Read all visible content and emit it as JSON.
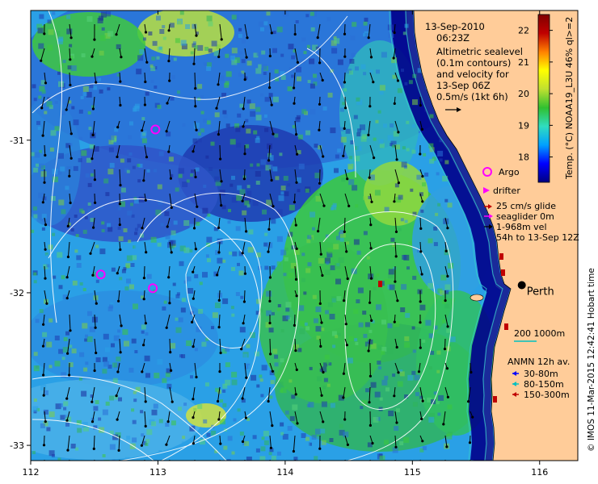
{
  "header": {
    "date": "13-Sep-2010",
    "time": "06:23Z",
    "description_lines": [
      "Altimetric sealevel",
      "(0.1m contours)",
      "and velocity for",
      "13-Sep 06Z",
      "0.5m/s (1kt 6h)"
    ]
  },
  "colorbar": {
    "label": "Temp. (°C) NOAA19_L3U 46% ql>=2",
    "ticks": [
      "18",
      "19",
      "20",
      "21",
      "22"
    ],
    "tick_values": [
      18,
      19,
      20,
      21,
      22
    ],
    "range": [
      17.2,
      22.5
    ],
    "colors": [
      "#000080",
      "#0000ff",
      "#00a0ff",
      "#30ddc0",
      "#30c030",
      "#c0e030",
      "#ffff00",
      "#ff8000",
      "#c00000",
      "#800000"
    ]
  },
  "axes": {
    "x_ticks": [
      "112",
      "113",
      "114",
      "115",
      "116"
    ],
    "x_values": [
      112,
      113,
      114,
      115,
      116
    ],
    "y_ticks": [
      "-31",
      "-32",
      "-33"
    ],
    "y_values": [
      -31,
      -32,
      -33
    ],
    "lon_range": [
      112,
      116.3
    ],
    "lat_range": [
      -33.1,
      -30.15
    ]
  },
  "legend": {
    "argo": "Argo",
    "drifter": "drifter",
    "glider_line1": "25 cm/s glide",
    "glider_line2": "seaglider 0m",
    "glider_line3": "1-968m vel",
    "glider_line4": "54h to 13-Sep 12Z",
    "depth_scale": "200  1000m",
    "anmn_title": "ANMN 12h av.",
    "anmn_items": [
      {
        "label": "30-80m",
        "color": "#0000ff"
      },
      {
        "label": "80-150m",
        "color": "#00c0c0"
      },
      {
        "label": "150-300m",
        "color": "#c00000"
      }
    ]
  },
  "places": {
    "city": "Perth",
    "city_lon": 115.86,
    "city_lat": -31.95
  },
  "argo_floats": [
    {
      "lon": 112.98,
      "lat": -30.93
    },
    {
      "lon": 112.55,
      "lat": -31.88
    },
    {
      "lon": 112.96,
      "lat": -31.97
    }
  ],
  "credit": "© IMOS 11-Mar-2015 12:42:41 Hobart time",
  "colors": {
    "land": "#ffcc99",
    "deep_ocean": "#00008b",
    "ocean_cool": "#1e46c8",
    "ocean_mid": "#2aa0e6",
    "ocean_warm": "#3cc83c",
    "contour": "#ffffff",
    "isobath": "#33cccc",
    "argo": "#ff00ff",
    "arrow": "#000000"
  }
}
